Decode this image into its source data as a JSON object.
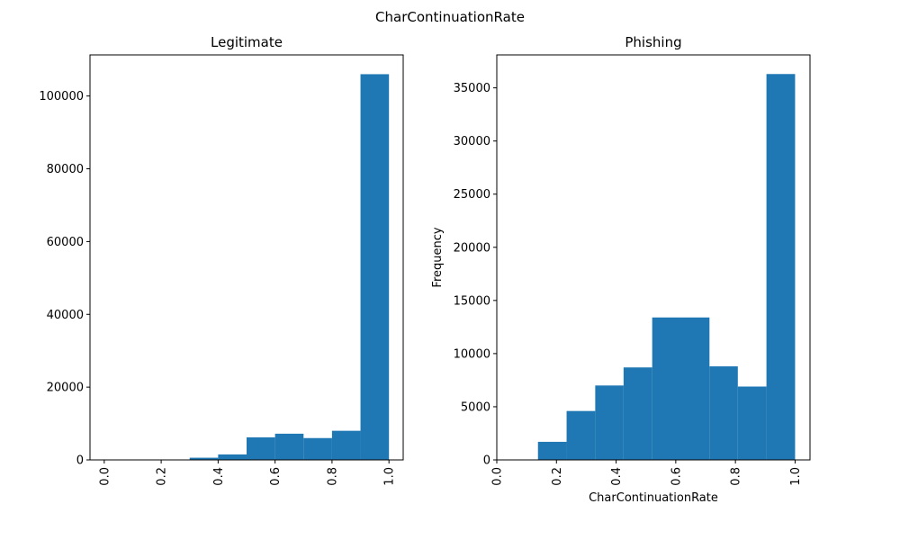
{
  "figure": {
    "suptitle": "CharContinuationRate"
  },
  "colors": {
    "bar": "#1f77b4",
    "axis": "#000000",
    "background": "#ffffff"
  },
  "chart_data": [
    {
      "type": "bar",
      "title": "Legitimate",
      "xlabel": "",
      "ylabel": "",
      "xlim": [
        -0.05,
        1.05
      ],
      "ylim": [
        0,
        111300
      ],
      "xticks": [
        0.0,
        0.2,
        0.4,
        0.6,
        0.8,
        1.0
      ],
      "xtick_labels": [
        "0.0",
        "0.2",
        "0.4",
        "0.6",
        "0.8",
        "1.0"
      ],
      "xtick_rotation": "vertical",
      "yticks": [
        0,
        20000,
        40000,
        60000,
        80000,
        100000
      ],
      "ytick_labels": [
        "0",
        "20000",
        "40000",
        "60000",
        "80000",
        "100000"
      ],
      "grid": false,
      "bins": [
        {
          "x0": 0.0,
          "x1": 0.1,
          "value": 50
        },
        {
          "x0": 0.1,
          "x1": 0.2,
          "value": 30
        },
        {
          "x0": 0.2,
          "x1": 0.3,
          "value": 80
        },
        {
          "x0": 0.3,
          "x1": 0.4,
          "value": 600
        },
        {
          "x0": 0.4,
          "x1": 0.5,
          "value": 1500
        },
        {
          "x0": 0.5,
          "x1": 0.6,
          "value": 6200
        },
        {
          "x0": 0.6,
          "x1": 0.7,
          "value": 7200
        },
        {
          "x0": 0.7,
          "x1": 0.8,
          "value": 6000
        },
        {
          "x0": 0.8,
          "x1": 0.9,
          "value": 8000
        },
        {
          "x0": 0.9,
          "x1": 1.0,
          "value": 106000
        }
      ]
    },
    {
      "type": "bar",
      "title": "Phishing",
      "xlabel": "CharContinuationRate",
      "ylabel": "Frequency",
      "xlim": [
        0.0,
        1.05
      ],
      "ylim": [
        0,
        38100
      ],
      "xticks": [
        0.0,
        0.2,
        0.4,
        0.6,
        0.8,
        1.0
      ],
      "xtick_labels": [
        "0.0",
        "0.2",
        "0.4",
        "0.6",
        "0.8",
        "1.0"
      ],
      "xtick_rotation": "vertical",
      "yticks": [
        0,
        5000,
        10000,
        15000,
        20000,
        25000,
        30000,
        35000
      ],
      "ytick_labels": [
        "0",
        "5000",
        "10000",
        "15000",
        "20000",
        "25000",
        "30000",
        "35000"
      ],
      "grid": false,
      "bins": [
        {
          "x0": 0.043,
          "x1": 0.138,
          "value": 0
        },
        {
          "x0": 0.138,
          "x1": 0.234,
          "value": 1700
        },
        {
          "x0": 0.234,
          "x1": 0.33,
          "value": 4600
        },
        {
          "x0": 0.33,
          "x1": 0.425,
          "value": 7000
        },
        {
          "x0": 0.425,
          "x1": 0.521,
          "value": 8700
        },
        {
          "x0": 0.521,
          "x1": 0.617,
          "value": 13400
        },
        {
          "x0": 0.617,
          "x1": 0.713,
          "value": 13400
        },
        {
          "x0": 0.713,
          "x1": 0.808,
          "value": 8800
        },
        {
          "x0": 0.808,
          "x1": 0.904,
          "value": 6900
        },
        {
          "x0": 0.904,
          "x1": 1.0,
          "value": 36300
        }
      ]
    }
  ]
}
